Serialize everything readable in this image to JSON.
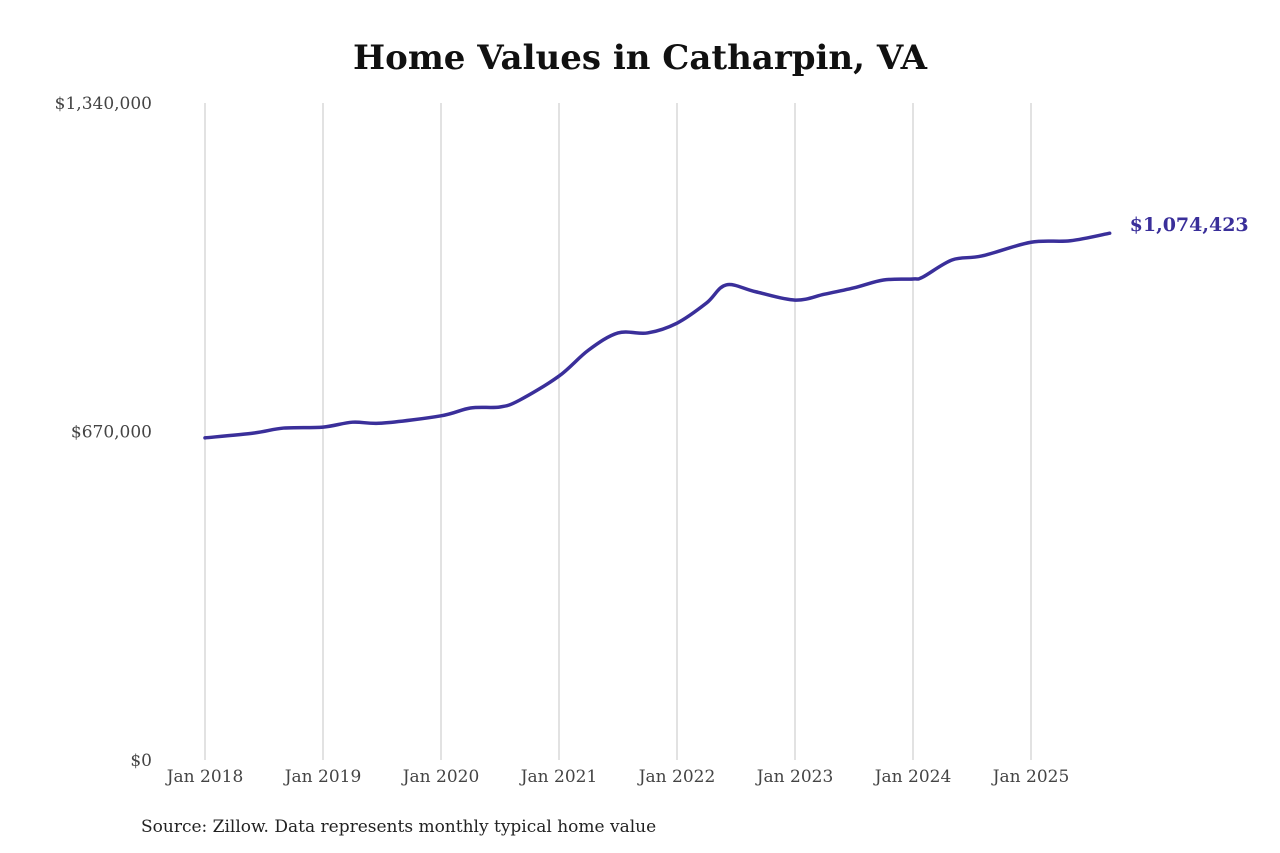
{
  "chart_data": {
    "type": "line",
    "title": "Home Values in Catharpin, VA",
    "xlabel": "",
    "ylabel": "",
    "ylim": [
      0,
      1340000
    ],
    "y_ticks": [
      0,
      670000,
      1340000
    ],
    "y_tick_labels": [
      "$0",
      "$670,000",
      "$1,340,000"
    ],
    "x_tick_labels": [
      "Jan 2018",
      "Jan 2019",
      "Jan 2020",
      "Jan 2021",
      "Jan 2022",
      "Jan 2023",
      "Jan 2024",
      "Jan 2025"
    ],
    "x_ticks": [
      "2018-01",
      "2019-01",
      "2020-01",
      "2021-01",
      "2022-01",
      "2023-01",
      "2024-01",
      "2025-01"
    ],
    "grid": "vertical lines at x ticks",
    "line_color": "#3a2f9a",
    "series": [
      {
        "x": [
          "2018-01",
          "2018-06",
          "2018-09",
          "2019-01",
          "2019-04",
          "2019-07",
          "2020-01",
          "2020-04",
          "2020-07",
          "2020-09",
          "2021-01",
          "2021-04",
          "2021-07",
          "2021-10",
          "2022-01",
          "2022-04",
          "2022-06",
          "2022-09",
          "2023-01",
          "2023-04",
          "2023-07",
          "2023-10",
          "2024-01",
          "2024-02",
          "2024-05",
          "2024-08",
          "2025-01",
          "2025-05",
          "2025-09"
        ],
        "values": [
          657000,
          667000,
          677000,
          679000,
          689000,
          687000,
          702000,
          718000,
          720000,
          734000,
          783000,
          836000,
          871000,
          871000,
          891000,
          932000,
          969000,
          955000,
          938000,
          950000,
          963000,
          979000,
          981000,
          985000,
          1020000,
          1028000,
          1056000,
          1059000,
          1074423
        ]
      }
    ],
    "end_label": "$1,074,423",
    "source": "Source: Zillow. Data represents monthly typical home value"
  }
}
